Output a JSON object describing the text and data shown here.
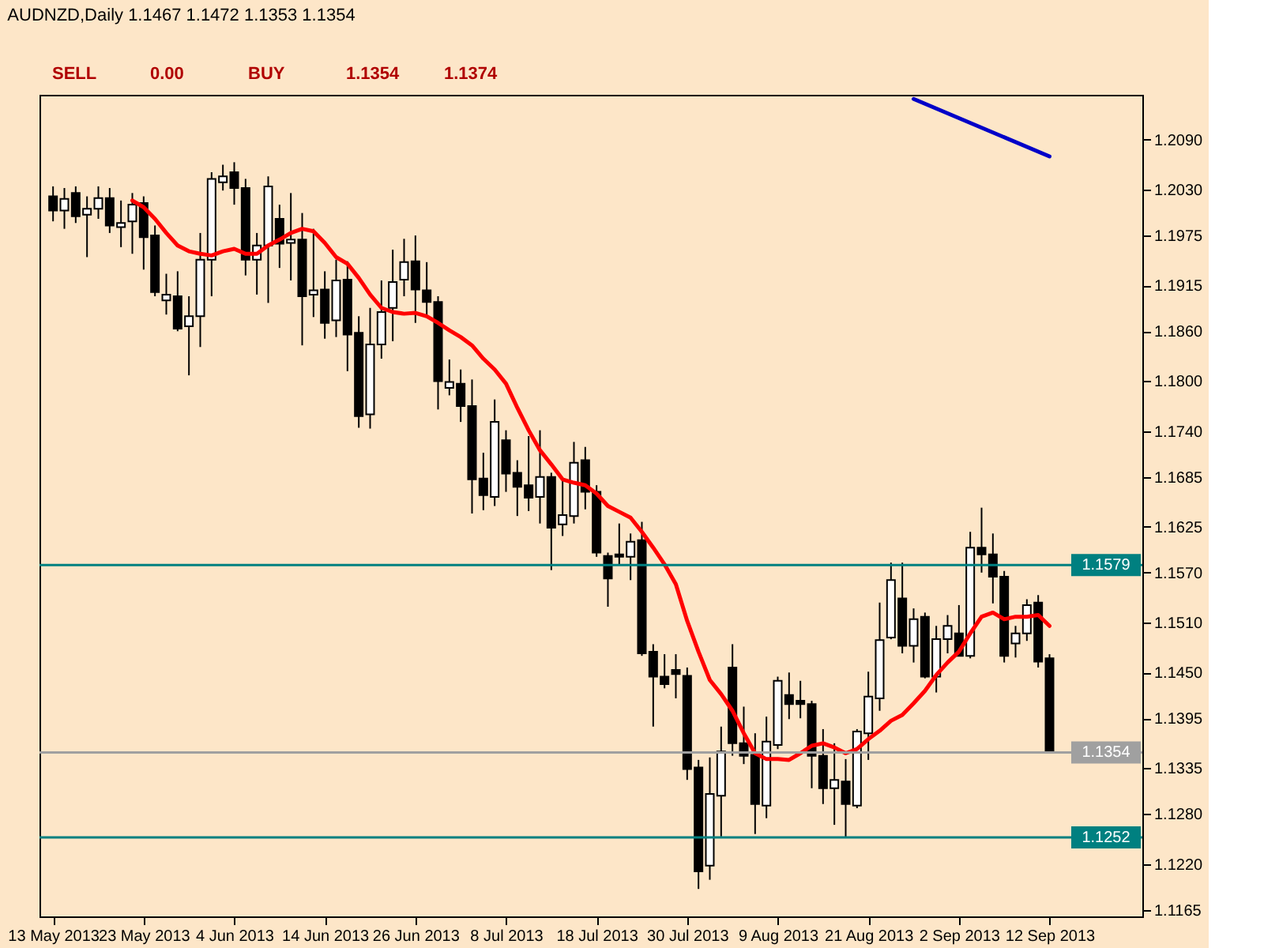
{
  "chart_data": {
    "type": "candlestick",
    "title": "AUDNZD,Daily  1.1467 1.1472 1.1353 1.1354",
    "annotations": [
      "SELL",
      "0.00",
      "BUY",
      "1.1354",
      "1.1374"
    ],
    "categories": [
      "13 May 2013",
      null,
      null,
      null,
      null,
      null,
      null,
      null,
      "23 May 2013",
      null,
      null,
      null,
      null,
      null,
      null,
      null,
      "4 Jun 2013",
      null,
      null,
      null,
      null,
      null,
      null,
      null,
      "14 Jun 2013",
      null,
      null,
      null,
      null,
      null,
      null,
      null,
      "26 Jun 2013",
      null,
      null,
      null,
      null,
      null,
      null,
      null,
      "8 Jul 2013",
      null,
      null,
      null,
      null,
      null,
      null,
      null,
      "18 Jul 2013",
      null,
      null,
      null,
      null,
      null,
      null,
      null,
      "30 Jul 2013",
      null,
      null,
      null,
      null,
      null,
      null,
      null,
      "9 Aug 2013",
      null,
      null,
      null,
      null,
      null,
      null,
      null,
      "21 Aug 2013",
      null,
      null,
      null,
      null,
      null,
      null,
      null,
      "2 Sep 2013",
      null,
      null,
      null,
      null,
      null,
      null,
      null,
      "12 Sep 2013"
    ],
    "ohlc": [
      [
        1.2022,
        1.2034,
        1.1992,
        1.2005
      ],
      [
        1.2005,
        1.2032,
        1.1983,
        1.2019
      ],
      [
        1.2026,
        1.2034,
        1.199,
        1.1998
      ],
      [
        1.2,
        1.2022,
        1.1949,
        1.2007
      ],
      [
        1.2007,
        1.2034,
        1.1995,
        1.202
      ],
      [
        1.202,
        1.2032,
        1.1978,
        1.1987
      ],
      [
        1.1985,
        1.2017,
        1.1961,
        1.199
      ],
      [
        1.1992,
        1.2026,
        1.1953,
        1.2012
      ],
      [
        1.2014,
        1.2022,
        1.1934,
        1.1973
      ],
      [
        1.1975,
        1.1987,
        1.1902,
        1.1907
      ],
      [
        1.1897,
        1.1929,
        1.188,
        1.1904
      ],
      [
        1.1902,
        1.1932,
        1.186,
        1.1863
      ],
      [
        1.1866,
        1.1902,
        1.1807,
        1.1878
      ],
      [
        1.1878,
        1.1978,
        1.1841,
        1.1946
      ],
      [
        1.1946,
        1.2051,
        1.1902,
        1.2043
      ],
      [
        1.2039,
        1.206,
        1.2029,
        1.2046
      ],
      [
        1.2051,
        1.2063,
        1.2012,
        1.2032
      ],
      [
        1.2032,
        1.2043,
        1.1927,
        1.1946
      ],
      [
        1.1946,
        1.1978,
        1.1904,
        1.1963
      ],
      [
        1.1963,
        1.2046,
        1.1894,
        1.2034
      ],
      [
        1.1995,
        1.2012,
        1.1936,
        1.1965
      ],
      [
        1.1966,
        1.2026,
        1.1921,
        1.197
      ],
      [
        1.197,
        1.2002,
        1.1843,
        1.1902
      ],
      [
        1.1904,
        1.1983,
        1.1877,
        1.1909
      ],
      [
        1.191,
        1.1932,
        1.1851,
        1.187
      ],
      [
        1.1873,
        1.1946,
        1.1853,
        1.1921
      ],
      [
        1.1922,
        1.1944,
        1.1812,
        1.1856
      ],
      [
        1.1858,
        1.1878,
        1.1744,
        1.1758
      ],
      [
        1.176,
        1.1888,
        1.1743,
        1.1844
      ],
      [
        1.1844,
        1.1921,
        1.1827,
        1.1883
      ],
      [
        1.1888,
        1.1958,
        1.1848,
        1.1919
      ],
      [
        1.1922,
        1.1971,
        1.1902,
        1.1943
      ],
      [
        1.1944,
        1.1975,
        1.187,
        1.191
      ],
      [
        1.1909,
        1.1943,
        1.1877,
        1.1895
      ],
      [
        1.1895,
        1.1902,
        1.1766,
        1.18
      ],
      [
        1.1792,
        1.1826,
        1.1783,
        1.1799
      ],
      [
        1.1797,
        1.1814,
        1.1751,
        1.177
      ],
      [
        1.177,
        1.1802,
        1.1641,
        1.1682
      ],
      [
        1.1683,
        1.1714,
        1.1645,
        1.1663
      ],
      [
        1.1661,
        1.1778,
        1.165,
        1.1751
      ],
      [
        1.1729,
        1.1741,
        1.1667,
        1.1689
      ],
      [
        1.169,
        1.1705,
        1.1638,
        1.1673
      ],
      [
        1.1675,
        1.1734,
        1.1644,
        1.166
      ],
      [
        1.1661,
        1.1741,
        1.1629,
        1.1685
      ],
      [
        1.1685,
        1.169,
        1.1573,
        1.1624
      ],
      [
        1.1628,
        1.1682,
        1.1614,
        1.1639
      ],
      [
        1.1638,
        1.1727,
        1.1629,
        1.1702
      ],
      [
        1.1705,
        1.1721,
        1.1646,
        1.1667
      ],
      [
        1.1667,
        1.1675,
        1.1589,
        1.1594
      ],
      [
        1.159,
        1.1594,
        1.1529,
        1.1563
      ],
      [
        1.1592,
        1.1629,
        1.158,
        1.1589
      ],
      [
        1.1589,
        1.1617,
        1.1561,
        1.1607
      ],
      [
        1.1609,
        1.1631,
        1.147,
        1.1473
      ],
      [
        1.1475,
        1.1484,
        1.1385,
        1.1445
      ],
      [
        1.1445,
        1.1472,
        1.1431,
        1.1436
      ],
      [
        1.1453,
        1.1472,
        1.1419,
        1.1448
      ],
      [
        1.1446,
        1.1456,
        1.1321,
        1.1334
      ],
      [
        1.1336,
        1.1345,
        1.119,
        1.1211
      ],
      [
        1.1218,
        1.1348,
        1.1201,
        1.1304
      ],
      [
        1.1302,
        1.1385,
        1.1253,
        1.1355
      ],
      [
        1.1456,
        1.1484,
        1.135,
        1.1365
      ],
      [
        1.1365,
        1.1409,
        1.134,
        1.135
      ],
      [
        1.1351,
        1.1377,
        1.1256,
        1.1292
      ],
      [
        1.129,
        1.1397,
        1.1275,
        1.1367
      ],
      [
        1.1363,
        1.1445,
        1.1358,
        1.144
      ],
      [
        1.1423,
        1.145,
        1.1394,
        1.1412
      ],
      [
        1.1416,
        1.144,
        1.1395,
        1.1412
      ],
      [
        1.1412,
        1.1416,
        1.1311,
        1.135
      ],
      [
        1.135,
        1.1382,
        1.1292,
        1.1311
      ],
      [
        1.1311,
        1.1365,
        1.1267,
        1.1321
      ],
      [
        1.1319,
        1.1346,
        1.1251,
        1.1292
      ],
      [
        1.129,
        1.1382,
        1.1287,
        1.1379
      ],
      [
        1.1377,
        1.1451,
        1.1345,
        1.1421
      ],
      [
        1.1419,
        1.1534,
        1.1404,
        1.1489
      ],
      [
        1.1492,
        1.1582,
        1.149,
        1.1561
      ],
      [
        1.1539,
        1.1582,
        1.1473,
        1.1482
      ],
      [
        1.1482,
        1.1527,
        1.1462,
        1.1514
      ],
      [
        1.1517,
        1.1522,
        1.1443,
        1.1445
      ],
      [
        1.1445,
        1.1506,
        1.1426,
        1.149
      ],
      [
        1.149,
        1.1519,
        1.1473,
        1.1506
      ],
      [
        1.1497,
        1.1531,
        1.147,
        1.147
      ],
      [
        1.147,
        1.1619,
        1.1467,
        1.16
      ],
      [
        1.16,
        1.1648,
        1.157,
        1.1592
      ],
      [
        1.1592,
        1.1617,
        1.1533,
        1.1565
      ],
      [
        1.1565,
        1.1572,
        1.1462,
        1.147
      ],
      [
        1.1485,
        1.1506,
        1.1468,
        1.1497
      ],
      [
        1.1497,
        1.1538,
        1.1488,
        1.1531
      ],
      [
        1.1534,
        1.1543,
        1.1456,
        1.1463
      ],
      [
        1.1467,
        1.1472,
        1.1353,
        1.1354
      ]
    ],
    "series": [
      {
        "type": "line",
        "color": "#ff0000",
        "values": [
          null,
          null,
          null,
          null,
          null,
          null,
          null,
          1.2017,
          1.2009,
          1.1995,
          1.1978,
          1.1963,
          1.1956,
          1.1953,
          1.1951,
          1.1956,
          1.1959,
          1.1953,
          1.1953,
          1.1963,
          1.197,
          1.1978,
          1.1983,
          1.198,
          1.1966,
          1.1949,
          1.1941,
          1.1924,
          1.1904,
          1.1888,
          1.1883,
          1.1881,
          1.1882,
          1.1878,
          1.187,
          1.1861,
          1.1853,
          1.1843,
          1.1827,
          1.1814,
          1.1797,
          1.1768,
          1.1741,
          1.1717,
          1.17,
          1.1682,
          1.1678,
          1.1675,
          1.1665,
          1.165,
          1.1643,
          1.1636,
          1.1619,
          1.16,
          1.158,
          1.1556,
          1.1512,
          1.1475,
          1.1441,
          1.1424,
          1.1404,
          1.1377,
          1.1353,
          1.1346,
          1.1346,
          1.1345,
          1.1353,
          1.1362,
          1.1365,
          1.136,
          1.1353,
          1.1358,
          1.137,
          1.138,
          1.1392,
          1.1399,
          1.1413,
          1.1428,
          1.1447,
          1.1462,
          1.1475,
          1.1497,
          1.1517,
          1.1522,
          1.1514,
          1.1517,
          1.1517,
          1.1519,
          1.1506
        ]
      },
      {
        "type": "line",
        "color": "#0000c8",
        "values": [
          null,
          null,
          null,
          null,
          null,
          null,
          null,
          null,
          null,
          null,
          null,
          null,
          null,
          null,
          null,
          null,
          null,
          null,
          null,
          null,
          null,
          null,
          null,
          null,
          null,
          null,
          null,
          null,
          null,
          null,
          null,
          null,
          null,
          null,
          null,
          null,
          null,
          null,
          null,
          null,
          null,
          null,
          null,
          null,
          null,
          null,
          null,
          null,
          null,
          null,
          null,
          null,
          null,
          null,
          null,
          null,
          null,
          null,
          null,
          null,
          null,
          null,
          null,
          null,
          null,
          null,
          null,
          null,
          null,
          null,
          null,
          null,
          null,
          null,
          null,
          null,
          1.2139,
          null,
          null,
          null,
          null,
          null,
          null,
          null,
          null,
          null,
          null,
          null,
          1.207
        ]
      }
    ],
    "ref_lines": [
      {
        "axis": "y",
        "value": 1.1579,
        "label": "1.1579",
        "color": "#008080"
      },
      {
        "axis": "y",
        "value": 1.1252,
        "label": "1.1252",
        "color": "#008080"
      },
      {
        "axis": "y",
        "value": 1.1354,
        "label": "1.1354",
        "color": "#a0a0a0"
      }
    ],
    "ylim": [
      1.1157,
      1.2144
    ],
    "yticks": [
      {
        "value": 1.209,
        "label": "1.2090"
      },
      {
        "value": 1.203,
        "label": "1.2030"
      },
      1.1975,
      1.1915,
      {
        "value": 1.186,
        "label": "1.1860"
      },
      {
        "value": 1.18,
        "label": "1.1800"
      },
      {
        "value": 1.174,
        "label": "1.1740"
      },
      1.1685,
      1.1625,
      {
        "value": 1.157,
        "label": "1.1570"
      },
      {
        "value": 1.151,
        "label": "1.1510"
      },
      {
        "value": 1.145,
        "label": "1.1450"
      },
      1.1395,
      1.1335,
      {
        "value": 1.128,
        "label": "1.1280"
      },
      {
        "value": 1.122,
        "label": "1.1220"
      },
      1.1165
    ],
    "grid": false
  }
}
